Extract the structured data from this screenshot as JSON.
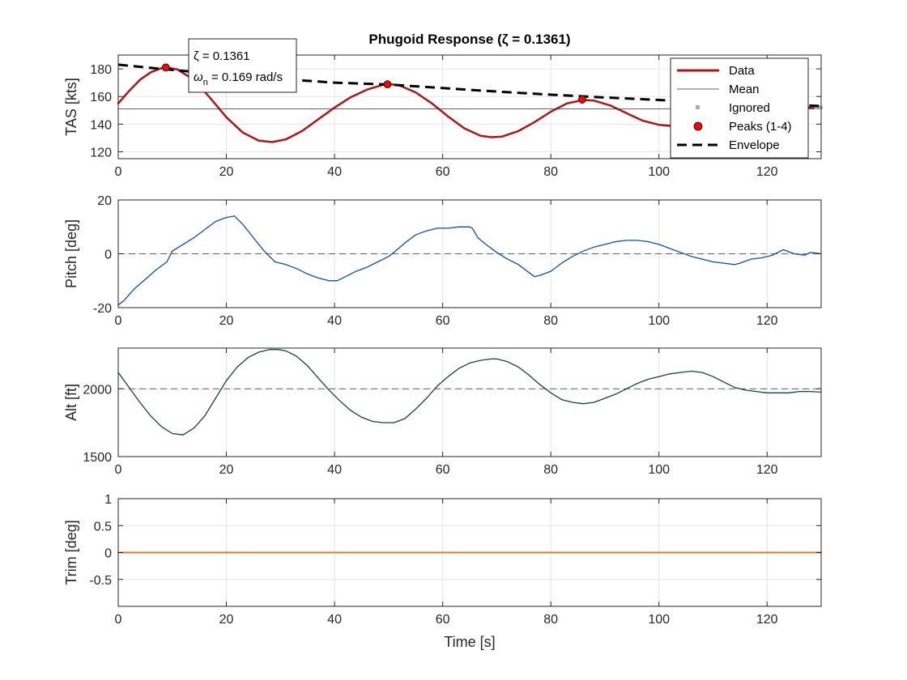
{
  "chart_data": [
    {
      "type": "line",
      "title": "Phugoid Response (ζ = 0.1361)",
      "ylabel": "TAS [kts]",
      "xlim": [
        0,
        130
      ],
      "ylim": [
        115,
        190
      ],
      "xticks": [
        0,
        20,
        40,
        60,
        80,
        100,
        120
      ],
      "yticks": [
        120,
        140,
        160,
        180
      ],
      "grid": true,
      "legend_position": "top-right",
      "series": [
        {
          "name": "Data",
          "color": "#b01515",
          "x": [
            0,
            2,
            4,
            6,
            8,
            9,
            11,
            14,
            17,
            20,
            23,
            26,
            28.5,
            31,
            34,
            37,
            40,
            43,
            46,
            49,
            50,
            52,
            55,
            58,
            61,
            64,
            67,
            69,
            71,
            74,
            77,
            80,
            83,
            86,
            88,
            91,
            94,
            97,
            100,
            103,
            105,
            108,
            111,
            114,
            117,
            120,
            125,
            130
          ],
          "y": [
            155,
            164,
            172,
            177.5,
            180.5,
            181,
            179.5,
            172,
            159,
            145,
            134,
            128,
            127,
            129,
            135,
            143.5,
            152,
            159.5,
            165,
            168.5,
            169,
            168,
            163,
            155,
            145.5,
            137,
            131.5,
            130.5,
            131,
            135,
            141.5,
            149,
            155,
            157.5,
            157,
            153.5,
            148,
            142.5,
            139.5,
            138.5,
            139.5,
            143,
            147.5,
            151,
            152.5,
            152.5,
            152,
            152
          ]
        },
        {
          "name": "Mean",
          "color": "#333333",
          "x": [
            0,
            130
          ],
          "y": [
            151,
            151
          ]
        },
        {
          "name": "Ignored",
          "color": "#aaaaaa",
          "x": [
            129,
            129.5,
            130
          ],
          "y": [
            152,
            152,
            152
          ]
        },
        {
          "name": "Peaks (1-4)",
          "color": "#ff0000",
          "x": [
            8.8,
            49.8,
            85.8
          ],
          "y": [
            181,
            168.8,
            157.8
          ]
        },
        {
          "name": "Envelope",
          "color": "#000000",
          "x": [
            0,
            10,
            20,
            30,
            40,
            50,
            60,
            70,
            80,
            90,
            100,
            110,
            120,
            130
          ],
          "y": [
            183,
            179.2,
            175.8,
            172.7,
            170,
            168.7,
            166.1,
            163.6,
            161.3,
            159.3,
            157.5,
            155.8,
            154.4,
            153.1
          ]
        }
      ],
      "annotation": {
        "line1": "ζ = 0.1361",
        "line2_prefix": "ω",
        "line2_sub": "n",
        "line2_suffix": " = 0.169 rad/s"
      }
    },
    {
      "type": "line",
      "ylabel": "Pitch [deg]",
      "xlim": [
        0,
        130
      ],
      "ylim": [
        -20,
        20
      ],
      "xticks": [
        0,
        20,
        40,
        60,
        80,
        100,
        120
      ],
      "yticks": [
        -20,
        0,
        20
      ],
      "grid": true,
      "reference_line": 0,
      "series": [
        {
          "color": "#0b4fae",
          "x": [
            0,
            1,
            3,
            5,
            7,
            9,
            10,
            12,
            14,
            16,
            18,
            20,
            21.5,
            23,
            25,
            27,
            29,
            31,
            33,
            35,
            37,
            39,
            40.5,
            42,
            44,
            46,
            48,
            50,
            51,
            53,
            55,
            57,
            59,
            61,
            63,
            65,
            65.5,
            66.5,
            68,
            70,
            72,
            74,
            76,
            77,
            78,
            80,
            82,
            84,
            86,
            88,
            90,
            92,
            94,
            96,
            98,
            100,
            102,
            104,
            106,
            108,
            110,
            112,
            114,
            115,
            117,
            119,
            121,
            123,
            125,
            127,
            128,
            130
          ],
          "y": [
            -19,
            -17.5,
            -13,
            -9.5,
            -6,
            -3,
            1,
            3.5,
            6,
            9,
            12,
            13.5,
            14,
            11,
            6,
            1,
            -3,
            -4,
            -5.5,
            -7.5,
            -9,
            -10,
            -10,
            -8.5,
            -6.5,
            -5,
            -3,
            -1,
            0.5,
            4,
            7,
            8.5,
            9.5,
            9.5,
            10,
            10,
            9.5,
            6,
            3.5,
            0.5,
            -2,
            -4,
            -7,
            -8.5,
            -8,
            -6.5,
            -3.5,
            -1,
            1,
            2.5,
            3.5,
            4.5,
            5,
            5,
            4.5,
            3.5,
            2,
            0.5,
            -1,
            -2,
            -3,
            -3.5,
            -4,
            -3.5,
            -2,
            -1.5,
            -0.5,
            1.5,
            0,
            -0.5,
            0.5,
            0
          ]
        }
      ]
    },
    {
      "type": "line",
      "ylabel": "Alt [ft]",
      "xlim": [
        0,
        130
      ],
      "ylim": [
        1500,
        2300
      ],
      "xticks": [
        0,
        20,
        40,
        60,
        80,
        100,
        120
      ],
      "yticks": [
        1500,
        2000
      ],
      "grid": true,
      "reference_line": 2000,
      "series": [
        {
          "color": "#12463a",
          "x": [
            0,
            2,
            4,
            6,
            8,
            10,
            12,
            14,
            16,
            18,
            20,
            22,
            24,
            26,
            28,
            29.5,
            31,
            33,
            35,
            37,
            39,
            41,
            43,
            45,
            47,
            49,
            51,
            53,
            55,
            57,
            59,
            61,
            63,
            65,
            67,
            69,
            70,
            72,
            74,
            76,
            78,
            80,
            82,
            84,
            86,
            88,
            90,
            92,
            94,
            96,
            98,
            100,
            102,
            104,
            106,
            108,
            110,
            112,
            114,
            116,
            118,
            120,
            122,
            124,
            126,
            128,
            130
          ],
          "y": [
            2120,
            2010,
            1900,
            1800,
            1720,
            1670,
            1660,
            1710,
            1800,
            1930,
            2060,
            2160,
            2230,
            2270,
            2290,
            2290,
            2280,
            2240,
            2170,
            2080,
            1990,
            1910,
            1840,
            1790,
            1760,
            1750,
            1750,
            1780,
            1850,
            1930,
            2020,
            2090,
            2150,
            2190,
            2210,
            2220,
            2220,
            2200,
            2160,
            2100,
            2030,
            1970,
            1920,
            1900,
            1890,
            1900,
            1930,
            1960,
            2000,
            2040,
            2070,
            2090,
            2110,
            2120,
            2130,
            2120,
            2090,
            2050,
            2010,
            1990,
            1980,
            1970,
            1970,
            1970,
            1980,
            1980,
            1975
          ]
        }
      ]
    },
    {
      "type": "line",
      "ylabel": "Trim [deg]",
      "xlabel": "Time [s]",
      "xlim": [
        0,
        130
      ],
      "ylim": [
        -1,
        1
      ],
      "xticks": [
        0,
        20,
        40,
        60,
        80,
        100,
        120
      ],
      "yticks": [
        -0.5,
        0,
        0.5,
        1
      ],
      "ytick_labels": [
        "-0.5",
        "0",
        "0.5",
        "1"
      ],
      "grid": true,
      "series": [
        {
          "color": "#e0762b",
          "x": [
            0,
            130
          ],
          "y": [
            0,
            0
          ]
        }
      ]
    }
  ]
}
